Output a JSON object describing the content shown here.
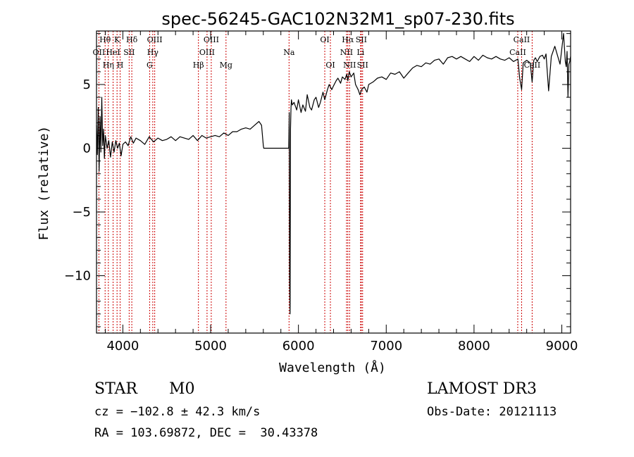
{
  "chart_data": {
    "type": "line",
    "title": "spec-56245-GAC102N32M1_sp07-230.fits",
    "xlabel": "Wavelength (Å)",
    "ylabel": "Flux (relative)",
    "xlim": [
      3700,
      9100
    ],
    "ylim": [
      -14.5,
      9.2
    ],
    "x_ticks": [
      4000,
      5000,
      6000,
      7000,
      8000,
      9000
    ],
    "x_tick_labels": [
      "4000",
      "5000",
      "6000",
      "7000",
      "8000",
      "9000"
    ],
    "y_ticks": [
      5,
      0,
      -5,
      -10
    ],
    "y_tick_labels": [
      "5",
      "0",
      "−5",
      "−10"
    ],
    "series": [
      {
        "name": "flux",
        "x": [
          3700,
          3710,
          3720,
          3730,
          3740,
          3750,
          3760,
          3770,
          3780,
          3790,
          3800,
          3820,
          3840,
          3860,
          3880,
          3900,
          3920,
          3940,
          3960,
          3980,
          4000,
          4030,
          4060,
          4090,
          4120,
          4150,
          4200,
          4250,
          4300,
          4350,
          4400,
          4450,
          4500,
          4550,
          4600,
          4650,
          4700,
          4750,
          4800,
          4850,
          4900,
          4950,
          5000,
          5050,
          5100,
          5150,
          5200,
          5250,
          5300,
          5350,
          5400,
          5450,
          5500,
          5550,
          5580,
          5600,
          5605,
          5890,
          5895,
          5900,
          5905,
          5910,
          5915,
          5920,
          5930,
          5950,
          5980,
          6000,
          6030,
          6050,
          6080,
          6100,
          6130,
          6150,
          6180,
          6200,
          6230,
          6250,
          6280,
          6300,
          6330,
          6350,
          6380,
          6400,
          6430,
          6450,
          6480,
          6500,
          6530,
          6550,
          6563,
          6580,
          6600,
          6630,
          6650,
          6680,
          6700,
          6720,
          6750,
          6780,
          6800,
          6850,
          6900,
          6950,
          7000,
          7050,
          7100,
          7150,
          7200,
          7250,
          7300,
          7350,
          7400,
          7450,
          7500,
          7550,
          7600,
          7650,
          7700,
          7750,
          7800,
          7850,
          7900,
          7950,
          8000,
          8050,
          8100,
          8150,
          8200,
          8250,
          8300,
          8350,
          8400,
          8450,
          8500,
          8520,
          8542,
          8560,
          8600,
          8640,
          8662,
          8680,
          8700,
          8720,
          8750,
          8780,
          8800,
          8820,
          8850,
          8880,
          8900,
          8920,
          8950,
          8980,
          9000,
          9020,
          9040,
          9050,
          9060,
          9070,
          9080,
          9090,
          9100
        ],
        "y": [
          1.8,
          -0.5,
          3.2,
          -1.8,
          2.5,
          -0.3,
          4.0,
          0.2,
          1.5,
          -0.8,
          1.0,
          0.0,
          0.6,
          -0.7,
          0.5,
          -0.3,
          0.6,
          0.0,
          0.4,
          -0.6,
          0.3,
          0.5,
          0.2,
          0.9,
          0.4,
          0.8,
          0.6,
          0.3,
          0.9,
          0.5,
          0.8,
          0.6,
          0.7,
          0.9,
          0.6,
          0.9,
          0.8,
          0.7,
          1.0,
          0.6,
          1.0,
          0.8,
          0.9,
          1.0,
          0.9,
          1.2,
          1.0,
          1.3,
          1.3,
          1.5,
          1.6,
          1.5,
          1.8,
          2.1,
          1.8,
          0.2,
          0.0,
          0.0,
          2.8,
          -10.5,
          -13.0,
          1.5,
          3.2,
          3.8,
          3.4,
          3.6,
          3.0,
          3.8,
          2.8,
          3.4,
          2.9,
          4.2,
          3.2,
          3.0,
          3.8,
          4.0,
          3.2,
          3.6,
          4.4,
          3.8,
          4.6,
          5.0,
          4.6,
          4.9,
          5.3,
          5.5,
          5.1,
          5.6,
          5.4,
          5.8,
          5.3,
          6.0,
          5.6,
          5.9,
          5.0,
          4.6,
          4.2,
          4.6,
          4.8,
          4.4,
          5.0,
          5.2,
          5.5,
          5.6,
          5.4,
          5.9,
          5.8,
          6.0,
          5.5,
          5.9,
          6.3,
          6.5,
          6.4,
          6.7,
          6.6,
          6.9,
          7.0,
          6.6,
          7.1,
          7.2,
          7.0,
          7.2,
          7.0,
          6.8,
          7.2,
          6.9,
          7.3,
          7.1,
          7.0,
          7.2,
          7.0,
          6.9,
          7.1,
          6.8,
          7.0,
          5.5,
          4.6,
          6.7,
          6.9,
          6.7,
          5.2,
          6.9,
          7.1,
          6.8,
          7.2,
          7.3,
          7.0,
          7.4,
          4.5,
          7.2,
          7.6,
          8.0,
          7.3,
          6.6,
          7.8,
          9.0,
          6.8,
          6.4,
          7.6,
          4.0,
          6.6,
          6.8,
          7.2
        ]
      }
    ],
    "line_markers": [
      {
        "label": "OII",
        "wavelength": 3727,
        "row": 1
      },
      {
        "label": "Hθ",
        "wavelength": 3798,
        "row": 0
      },
      {
        "label": "Hη",
        "wavelength": 3835,
        "row": 2
      },
      {
        "label": "HeI",
        "wavelength": 3889,
        "row": 1
      },
      {
        "label": "K",
        "wavelength": 3934,
        "row": 0
      },
      {
        "label": "H",
        "wavelength": 3969,
        "row": 2
      },
      {
        "label": "SII",
        "wavelength": 4072,
        "row": 1
      },
      {
        "label": "Hδ",
        "wavelength": 4102,
        "row": 0
      },
      {
        "label": "G",
        "wavelength": 4305,
        "row": 2
      },
      {
        "label": "Hγ",
        "wavelength": 4341,
        "row": 1
      },
      {
        "label": "OIII",
        "wavelength": 4363,
        "row": 0
      },
      {
        "label": "Hβ",
        "wavelength": 4861,
        "row": 2
      },
      {
        "label": "OIII",
        "wavelength": 4959,
        "row": 1
      },
      {
        "label": "OIII",
        "wavelength": 5007,
        "row": 0
      },
      {
        "label": "Mg",
        "wavelength": 5175,
        "row": 2
      },
      {
        "label": "Na",
        "wavelength": 5893,
        "row": 1
      },
      {
        "label": "OI",
        "wavelength": 6300,
        "row": 0
      },
      {
        "label": "OI",
        "wavelength": 6364,
        "row": 2
      },
      {
        "label": "NII",
        "wavelength": 6548,
        "row": 1
      },
      {
        "label": "Hα",
        "wavelength": 6563,
        "row": 0
      },
      {
        "label": "NII",
        "wavelength": 6583,
        "row": 2
      },
      {
        "label": "Li",
        "wavelength": 6708,
        "row": 1
      },
      {
        "label": "SII",
        "wavelength": 6716,
        "row": 0
      },
      {
        "label": "SII",
        "wavelength": 6731,
        "row": 2
      },
      {
        "label": "CaII",
        "wavelength": 8498,
        "row": 1
      },
      {
        "label": "CaII",
        "wavelength": 8542,
        "row": 0
      },
      {
        "label": "CaII",
        "wavelength": 8662,
        "row": 2
      }
    ],
    "marker_color": "#cc0000",
    "line_color": "#000000"
  },
  "info": {
    "object_class": "STAR",
    "subclass": "M0",
    "survey": "LAMOST DR3",
    "redshift": "cz = −102.8 ± 42.3 km/s",
    "obs_date": "Obs-Date: 20121113",
    "coords": "RA = 103.69872, DEC =  30.43378"
  }
}
